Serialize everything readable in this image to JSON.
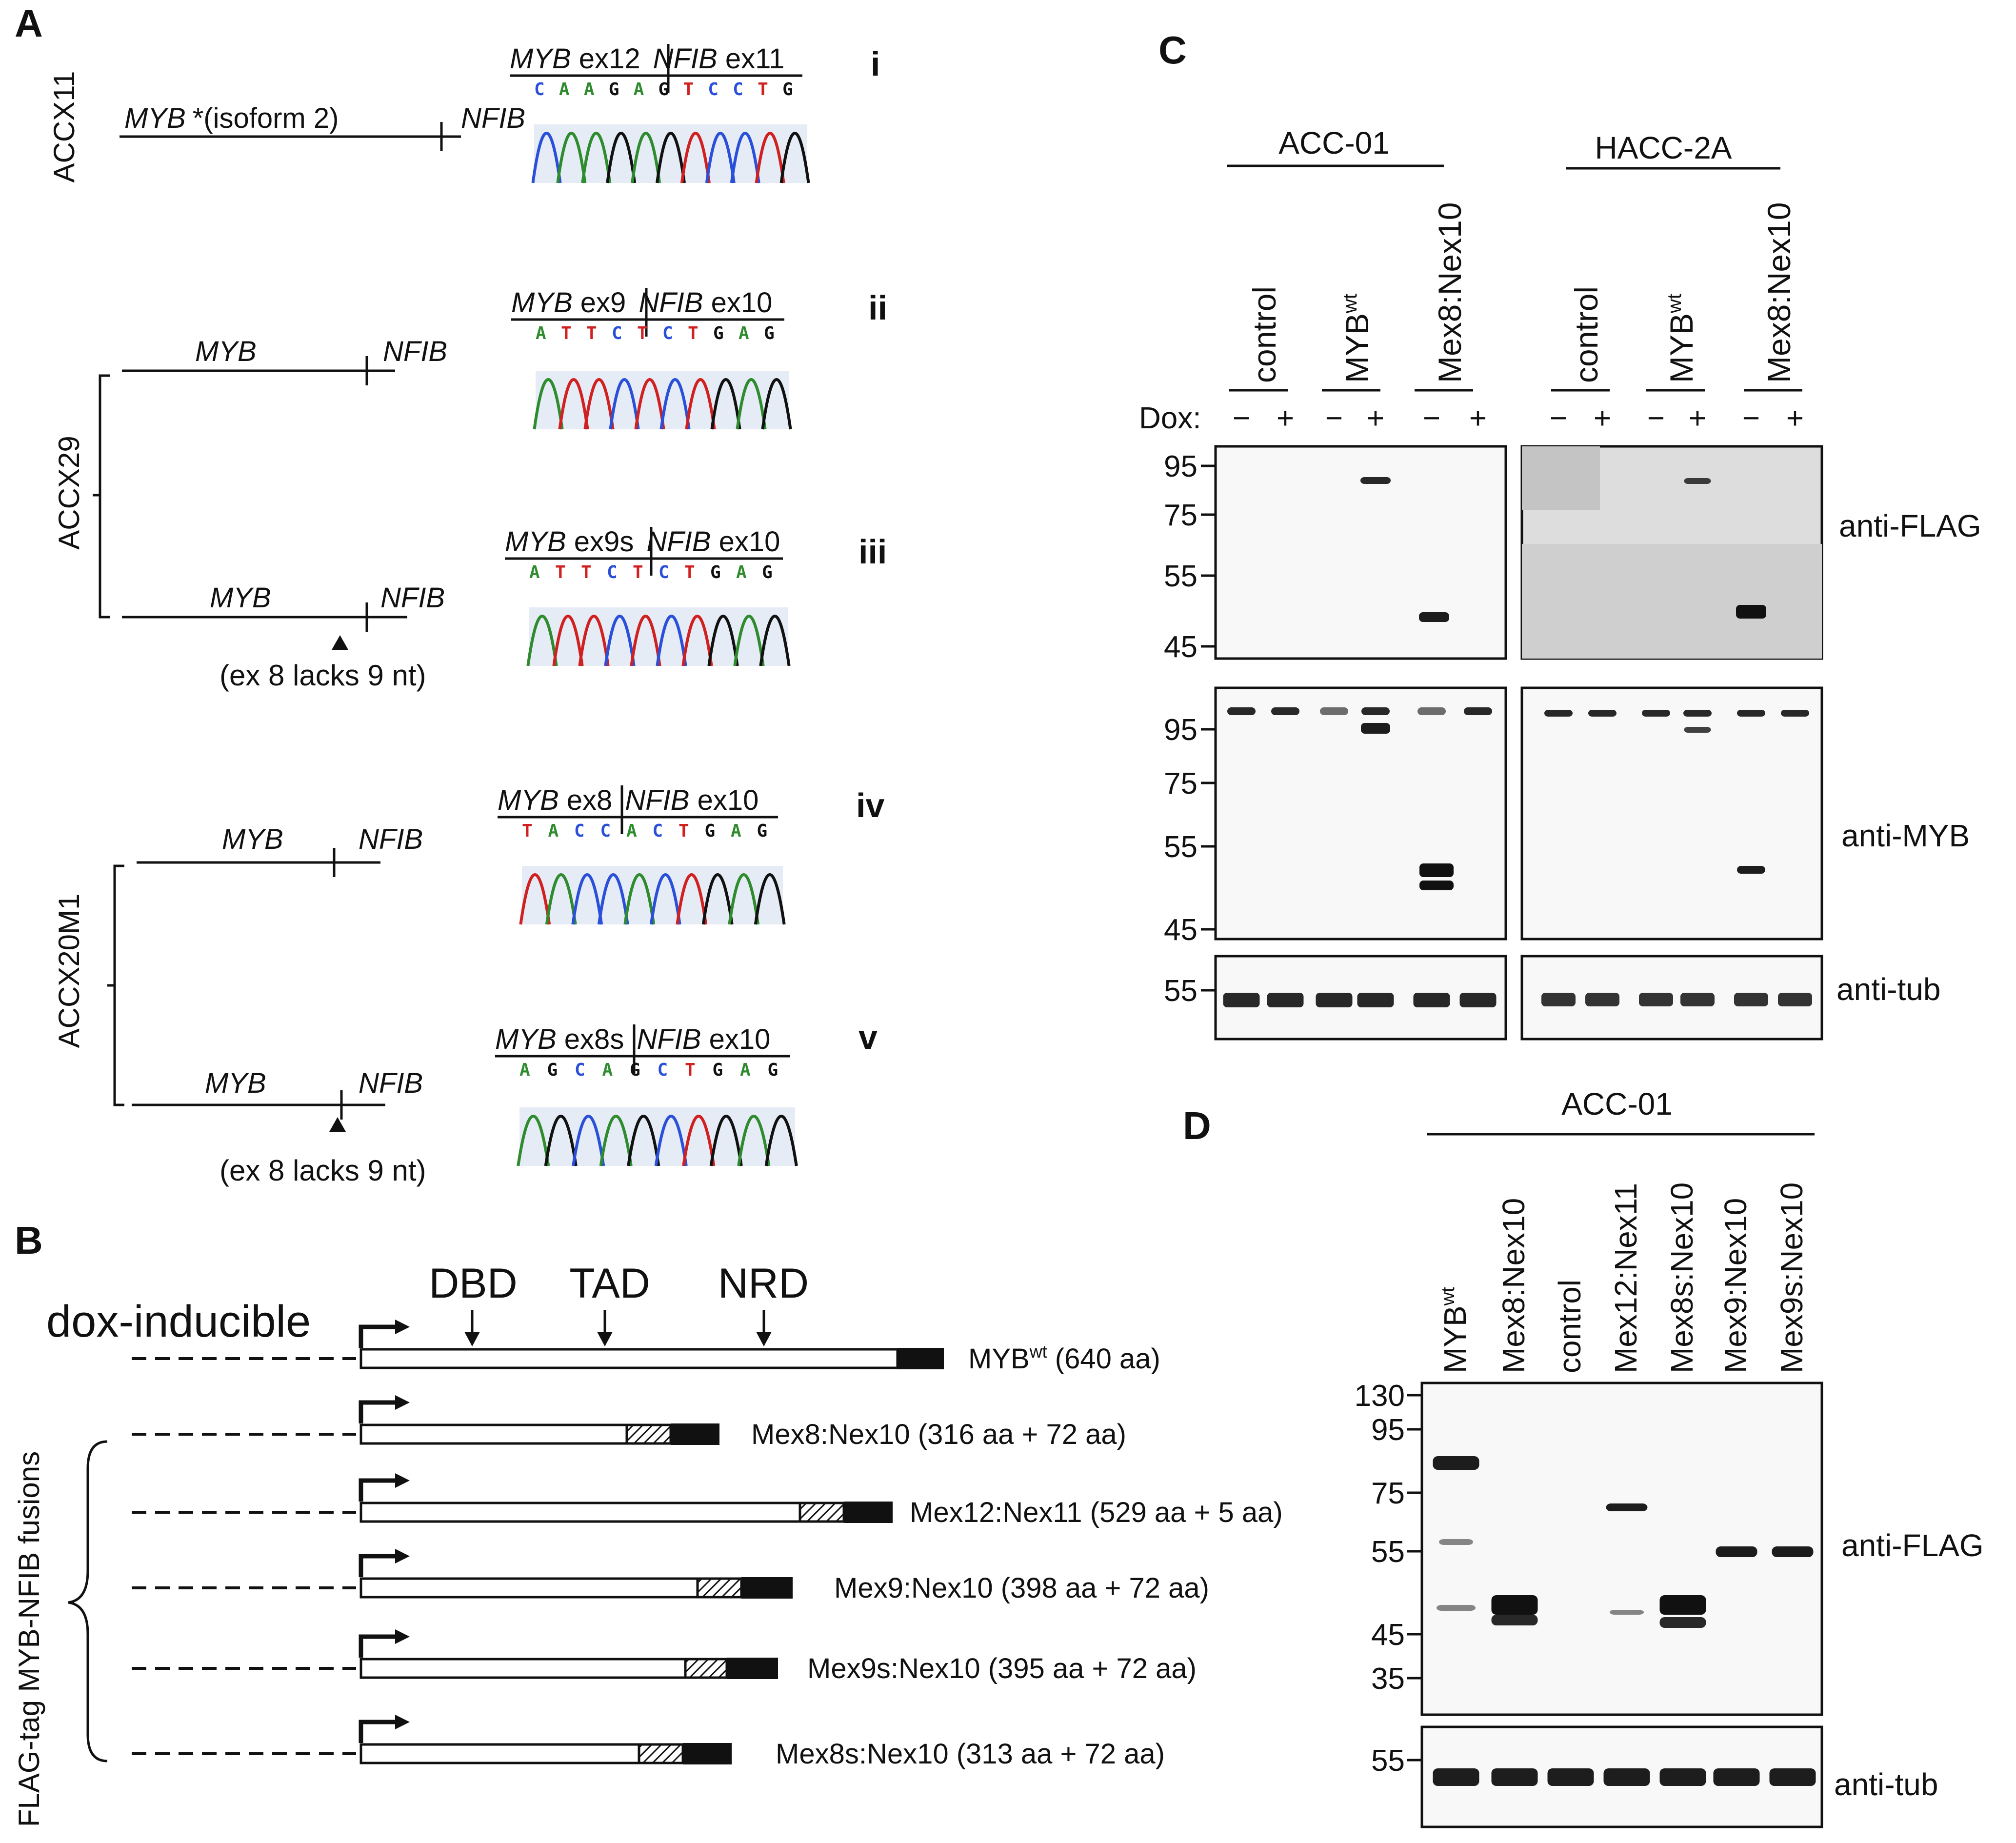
{
  "panels": {
    "A": "A",
    "B": "B",
    "C": "C",
    "D": "D"
  },
  "panelA": {
    "roman": [
      "i",
      "ii",
      "iii",
      "iv",
      "v"
    ],
    "samples": [
      "ACCX11",
      "ACCX29",
      "ACCX20M1"
    ],
    "gene_myb": "MYB",
    "gene_nfib": "NFIB",
    "isoform_note": "*(isoform 2)",
    "lacks_note": "(ex 8 lacks 9 nt)",
    "junctions": [
      {
        "left_gene": "MYB",
        "left_ex": " ex12",
        "right_gene": "NFIB",
        "right_ex": " ex11",
        "seq": "CAAGAGTCCTG"
      },
      {
        "left_gene": "MYB",
        "left_ex": " ex9",
        "right_gene": "NFIB",
        "right_ex": " ex10",
        "seq": "ATTCTCTGAG"
      },
      {
        "left_gene": "MYB",
        "left_ex": " ex9s",
        "right_gene": "NFIB",
        "right_ex": " ex10",
        "seq": "ATTCTCTGAG"
      },
      {
        "left_gene": "MYB",
        "left_ex": " ex8",
        "right_gene": "NFIB",
        "right_ex": " ex10",
        "seq": "TACCACTGAG"
      },
      {
        "left_gene": "MYB",
        "left_ex": " ex8s",
        "right_gene": "NFIB",
        "right_ex": " ex10",
        "seq": "AGCAGCTGAG"
      }
    ],
    "base_colors": {
      "A": "#2e8b2e",
      "C": "#2a4fd8",
      "G": "#111111",
      "T": "#d02020"
    }
  },
  "panelB": {
    "domains": [
      "DBD",
      "TAD",
      "NRD"
    ],
    "dox_label": "dox-inducible",
    "fusions_label": "FLAG-tag MYB-NFIB fusions",
    "constructs": [
      {
        "name": "MYB",
        "sup": "wt",
        "desc": " (640 aa)"
      },
      {
        "name": "Mex8:Nex10",
        "sup": "",
        "desc": " (316 aa + 72 aa)"
      },
      {
        "name": "Mex12:Nex11",
        "sup": "",
        "desc": " (529 aa + 5 aa)"
      },
      {
        "name": "Mex9:Nex10",
        "sup": "",
        "desc": " (398 aa + 72 aa)"
      },
      {
        "name": "Mex9s:Nex10",
        "sup": "",
        "desc": " (395 aa + 72 aa)"
      },
      {
        "name": "Mex8s:Nex10",
        "sup": "",
        "desc": " (313 aa + 72 aa)"
      }
    ]
  },
  "panelC": {
    "cell_lines": [
      "ACC-01",
      "HACC-2A"
    ],
    "lanes": [
      {
        "name": "control",
        "sup": ""
      },
      {
        "name": "MYB",
        "sup": "wt"
      },
      {
        "name": "Mex8:Nex10",
        "sup": ""
      }
    ],
    "dox_label": "Dox:",
    "dox_minus": "−",
    "dox_plus": "+",
    "blots": [
      {
        "antibody": "anti-FLAG",
        "markers": [
          "95",
          "75",
          "55",
          "45"
        ]
      },
      {
        "antibody": "anti-MYB",
        "markers": [
          "95",
          "75",
          "55",
          "45"
        ]
      },
      {
        "antibody": "anti-tub",
        "markers": [
          "55"
        ]
      }
    ]
  },
  "panelD": {
    "cell_line": "ACC-01",
    "lanes": [
      {
        "name": "MYB",
        "sup": "wt"
      },
      {
        "name": "Mex8:Nex10",
        "sup": ""
      },
      {
        "name": "control",
        "sup": ""
      },
      {
        "name": "Mex12:Nex11",
        "sup": ""
      },
      {
        "name": "Mex8s:Nex10",
        "sup": ""
      },
      {
        "name": "Mex9:Nex10",
        "sup": ""
      },
      {
        "name": "Mex9s:Nex10",
        "sup": ""
      }
    ],
    "blots": [
      {
        "antibody": "anti-FLAG",
        "markers": [
          "130",
          "95",
          "75",
          "55",
          "45",
          "35"
        ]
      },
      {
        "antibody": "anti-tub",
        "markers": [
          "55"
        ]
      }
    ]
  }
}
